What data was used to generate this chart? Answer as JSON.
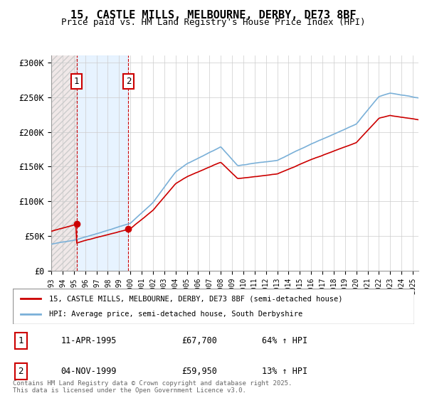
{
  "title": "15, CASTLE MILLS, MELBOURNE, DERBY, DE73 8BF",
  "subtitle": "Price paid vs. HM Land Registry's House Price Index (HPI)",
  "legend_line1": "15, CASTLE MILLS, MELBOURNE, DERBY, DE73 8BF (semi-detached house)",
  "legend_line2": "HPI: Average price, semi-detached house, South Derbyshire",
  "footer": "Contains HM Land Registry data © Crown copyright and database right 2025.\nThis data is licensed under the Open Government Licence v3.0.",
  "sale1_date": "11-APR-1995",
  "sale1_price": 67700,
  "sale1_pct": "64% ↑ HPI",
  "sale2_date": "04-NOV-1999",
  "sale2_price": 59950,
  "sale2_pct": "13% ↑ HPI",
  "ylim": [
    0,
    310000
  ],
  "yticks": [
    0,
    50000,
    100000,
    150000,
    200000,
    250000,
    300000
  ],
  "ytick_labels": [
    "£0",
    "£50K",
    "£100K",
    "£150K",
    "£200K",
    "£250K",
    "£300K"
  ],
  "red_color": "#cc0000",
  "blue_color": "#aac8e8",
  "blue_line_color": "#7ab0d8",
  "hatch_color": "#cccccc",
  "bg_color": "#ffffff",
  "sale1_bg": "#f0e8e8",
  "sale2_bg": "#ddeeff",
  "grid_color": "#cccccc",
  "marker_color": "#cc0000"
}
